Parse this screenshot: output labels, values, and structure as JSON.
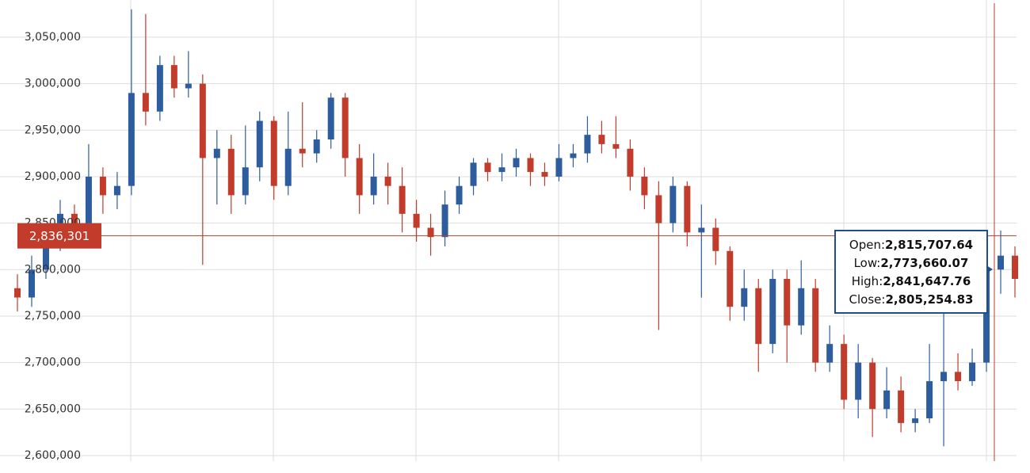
{
  "chart_data": {
    "type": "candlestick",
    "ylim": [
      2594000,
      3090000
    ],
    "yticks": [
      {
        "value": 2600000,
        "label": "2,600,000"
      },
      {
        "value": 2650000,
        "label": "2,650,000"
      },
      {
        "value": 2700000,
        "label": "2,700,000"
      },
      {
        "value": 2750000,
        "label": "2,750,000"
      },
      {
        "value": 2800000,
        "label": "2,800,000"
      },
      {
        "value": 2850000,
        "label": "2,850,000"
      },
      {
        "value": 2900000,
        "label": "2,900,000"
      },
      {
        "value": 2950000,
        "label": "2,950,000"
      },
      {
        "value": 3000000,
        "label": "3,000,000"
      },
      {
        "value": 3050000,
        "label": "3,050,000"
      }
    ],
    "grid": true,
    "up_color": "#2d5d9f",
    "down_color": "#c23b2b",
    "open": [
      2780000,
      2770000,
      2800000,
      2830000,
      2860000,
      2840000,
      2900000,
      2880000,
      2890000,
      2990000,
      2970000,
      3020000,
      2995000,
      3000000,
      2920000,
      2930000,
      2880000,
      2910000,
      2960000,
      2890000,
      2930000,
      2925000,
      2940000,
      2985000,
      2920000,
      2880000,
      2900000,
      2890000,
      2860000,
      2845000,
      2835000,
      2870000,
      2890000,
      2915000,
      2905000,
      2910000,
      2920000,
      2905000,
      2900000,
      2920000,
      2925000,
      2945000,
      2935000,
      2930000,
      2900000,
      2880000,
      2850000,
      2890000,
      2840000,
      2845000,
      2820000,
      2760000,
      2780000,
      2720000,
      2790000,
      2740000,
      2780000,
      2700000,
      2720000,
      2660000,
      2700000,
      2650000,
      2670000,
      2635000,
      2640000,
      2680000,
      2690000,
      2680000,
      2700000,
      2800000,
      2815000
    ],
    "high": [
      2795000,
      2815000,
      2845000,
      2875000,
      2870000,
      2935000,
      2910000,
      2905000,
      3080000,
      3075000,
      3030000,
      3030000,
      3035000,
      3010000,
      2950000,
      2945000,
      2955000,
      2970000,
      2965000,
      2970000,
      2980000,
      2950000,
      2990000,
      2990000,
      2935000,
      2925000,
      2915000,
      2910000,
      2875000,
      2860000,
      2885000,
      2900000,
      2920000,
      2920000,
      2925000,
      2930000,
      2925000,
      2915000,
      2935000,
      2935000,
      2965000,
      2960000,
      2965000,
      2940000,
      2910000,
      2895000,
      2900000,
      2895000,
      2870000,
      2855000,
      2825000,
      2800000,
      2790000,
      2800000,
      2800000,
      2810000,
      2790000,
      2740000,
      2730000,
      2720000,
      2705000,
      2695000,
      2685000,
      2650000,
      2720000,
      2755000,
      2710000,
      2715000,
      2810000,
      2842000,
      2825000
    ],
    "low": [
      2755000,
      2760000,
      2790000,
      2820000,
      2825000,
      2830000,
      2860000,
      2865000,
      2880000,
      2955000,
      2960000,
      2985000,
      2985000,
      2805000,
      2870000,
      2860000,
      2870000,
      2895000,
      2875000,
      2880000,
      2910000,
      2915000,
      2930000,
      2900000,
      2860000,
      2870000,
      2870000,
      2840000,
      2830000,
      2815000,
      2825000,
      2860000,
      2880000,
      2895000,
      2895000,
      2900000,
      2890000,
      2890000,
      2895000,
      2910000,
      2915000,
      2925000,
      2920000,
      2885000,
      2865000,
      2735000,
      2840000,
      2825000,
      2770000,
      2805000,
      2745000,
      2745000,
      2690000,
      2710000,
      2700000,
      2730000,
      2690000,
      2690000,
      2650000,
      2640000,
      2620000,
      2640000,
      2625000,
      2625000,
      2635000,
      2610000,
      2670000,
      2675000,
      2690000,
      2774000,
      2770000
    ],
    "close": [
      2770000,
      2800000,
      2830000,
      2860000,
      2840000,
      2900000,
      2880000,
      2890000,
      2990000,
      2970000,
      3020000,
      2995000,
      3000000,
      2920000,
      2930000,
      2880000,
      2910000,
      2960000,
      2890000,
      2930000,
      2925000,
      2940000,
      2985000,
      2920000,
      2880000,
      2900000,
      2890000,
      2860000,
      2845000,
      2835000,
      2870000,
      2890000,
      2915000,
      2905000,
      2910000,
      2920000,
      2905000,
      2900000,
      2920000,
      2925000,
      2945000,
      2935000,
      2930000,
      2900000,
      2880000,
      2850000,
      2890000,
      2840000,
      2845000,
      2820000,
      2760000,
      2780000,
      2720000,
      2790000,
      2740000,
      2780000,
      2700000,
      2720000,
      2660000,
      2700000,
      2650000,
      2670000,
      2635000,
      2640000,
      2680000,
      2690000,
      2680000,
      2700000,
      2800000,
      2815000,
      2790000
    ],
    "crosshair": {
      "value": 2836301,
      "label": "2,836,301",
      "color": "#c23b2b"
    },
    "tooltip": [
      {
        "label": "Open:",
        "value": "2,815,707.64"
      },
      {
        "label": "Low:",
        "value": "2,773,660.07"
      },
      {
        "label": "High:",
        "value": "2,841,647.76"
      },
      {
        "label": "Close:",
        "value": "2,805,254.83"
      }
    ]
  }
}
